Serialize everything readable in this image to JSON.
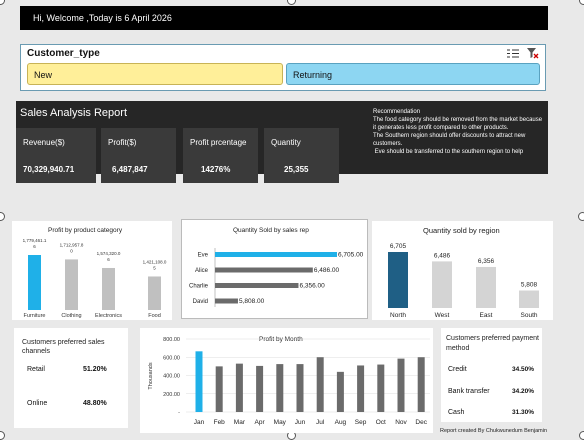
{
  "welcome": "Hi, Welcome ,Today is 6 April 2026",
  "slicer": {
    "title": "Customer_type",
    "options": [
      "New",
      "Returning"
    ],
    "icons": [
      "multi-select-icon",
      "clear-filter-icon"
    ]
  },
  "sales": {
    "title": "Sales Analysis Report",
    "kpis": [
      {
        "label": "Revenue($)",
        "value": "70,329,940.71"
      },
      {
        "label": "Profit($)",
        "value": "6,487,847"
      },
      {
        "label": "Profit prcentage",
        "value": "14276%"
      },
      {
        "label": "Quantity",
        "value": "25,355"
      }
    ],
    "recommendation": {
      "title": "Recommendation",
      "lines": [
        "The food category should be removed from the market because it generates less profit compared to other products.",
        "The Southern region should offer discounts to attract new customers.",
        " Eve should be transferred to the southern region to help"
      ]
    }
  },
  "colors": {
    "highlight": "#1fb0e8",
    "gray": "#c0c0c0",
    "dark_gray": "#6b6b6b",
    "navy": "#1f5f85",
    "panel": "#262626"
  },
  "chart_data": [
    {
      "type": "bar",
      "title": "Profit by product category",
      "categories": [
        "Furniture",
        "Clothing",
        "Electronics",
        "Food"
      ],
      "values": [
        1779461.1,
        1712957.8,
        1574320.0,
        1421108.0
      ],
      "data_labels": [
        "1,779,461.1 6",
        "1,712,957.8 0",
        "1,574,320.0 6",
        "1,421,108.0 5"
      ]
    },
    {
      "type": "bar",
      "orientation": "horizontal",
      "title": "Quantity Sold by sales rep",
      "categories": [
        "Eve",
        "Alice",
        "Charlie",
        "David"
      ],
      "values": [
        6705,
        6486,
        6356,
        5808
      ],
      "data_labels": [
        "6,705.00",
        "6,486.00",
        "6,356.00",
        "5,808.00"
      ]
    },
    {
      "type": "bar",
      "title": "Quantity sold by region",
      "categories": [
        "North",
        "West",
        "East",
        "South"
      ],
      "values": [
        6705,
        6486,
        6356,
        5808
      ],
      "data_labels": [
        "6,705",
        "6,486",
        "6,356",
        "5,808"
      ]
    },
    {
      "type": "bar",
      "title": "Profit by  Month",
      "ylabel": "Thousands",
      "categories": [
        "Jan",
        "Feb",
        "Mar",
        "Apr",
        "May",
        "Jun",
        "Jul",
        "Aug",
        "Sep",
        "Oct",
        "Nov",
        "Dec"
      ],
      "values": [
        665,
        500,
        530,
        505,
        525,
        525,
        600,
        440,
        510,
        520,
        585,
        600
      ],
      "yticks": [
        "800.00",
        "600.00",
        "400.00",
        "200.00",
        "-"
      ],
      "ylim": [
        0,
        800
      ]
    },
    {
      "type": "table",
      "title": "Customers preferred sales channels",
      "rows": [
        [
          "Retail",
          "51.20%"
        ],
        [
          "Online",
          "48.80%"
        ]
      ]
    },
    {
      "type": "table",
      "title": "Customers preferred payment method",
      "rows": [
        [
          "Credit",
          "34.50%"
        ],
        [
          "Bank transfer",
          "34.20%"
        ],
        [
          "Cash",
          "31.30%"
        ]
      ]
    }
  ],
  "credit": "Report created By Chukwunedum Benjamin"
}
